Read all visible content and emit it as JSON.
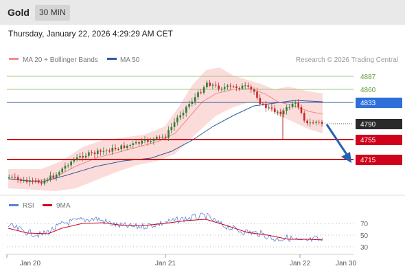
{
  "header": {
    "title": "Gold",
    "timeframe": "30 MIN"
  },
  "datetime": "Thursday, January 22, 2026 4:29:29 AM CET",
  "legend": {
    "ma20": {
      "label": "MA 20 + Bollinger Bands",
      "color": "#f08a8a"
    },
    "ma50": {
      "label": "MA 50",
      "color": "#2c5a9a"
    },
    "credit": "Research © 2026 Trading Central"
  },
  "levels": [
    {
      "value": "4887",
      "style": "green"
    },
    {
      "value": "4860",
      "style": "green"
    },
    {
      "value": "4833",
      "style": "blue"
    },
    {
      "value": "4790",
      "style": "current"
    },
    {
      "value": "4755",
      "style": "red"
    },
    {
      "value": "4715",
      "style": "red"
    }
  ],
  "rsi": {
    "legend": [
      {
        "label": "RSI",
        "color": "#5a7fd6"
      },
      {
        "label": "9MA",
        "color": "#d0021b"
      }
    ],
    "levels": [
      "70",
      "50",
      "30"
    ]
  },
  "xaxis": {
    "labels": [
      "Jan 20",
      "Jan 21",
      "Jan 22",
      "Jan 30"
    ]
  },
  "colors": {
    "up": "#2e7d32",
    "down": "#c62828",
    "green_line": "#9bc87a",
    "blue_line": "#2c5a9a",
    "red_line": "#d0021b",
    "current_box": "#2a2a2a",
    "blue_box": "#2e6fd8",
    "bollinger_fill": "#fbd5d5",
    "ma20": "#f08a8a",
    "ma50": "#2c5a9a",
    "arrow": "#2461b3"
  },
  "chart_data": {
    "type": "candlestick",
    "instrument": "Gold",
    "interval": "30 MIN",
    "price_levels": [
      4887,
      4860,
      4833,
      4790,
      4755,
      4715
    ],
    "current_price": 4790,
    "x_ticks": [
      "Jan 20",
      "Jan 21",
      "Jan 22",
      "Jan 30"
    ],
    "rsi_levels": [
      70,
      50,
      30
    ],
    "projection": {
      "direction": "down",
      "target": 4715
    }
  }
}
